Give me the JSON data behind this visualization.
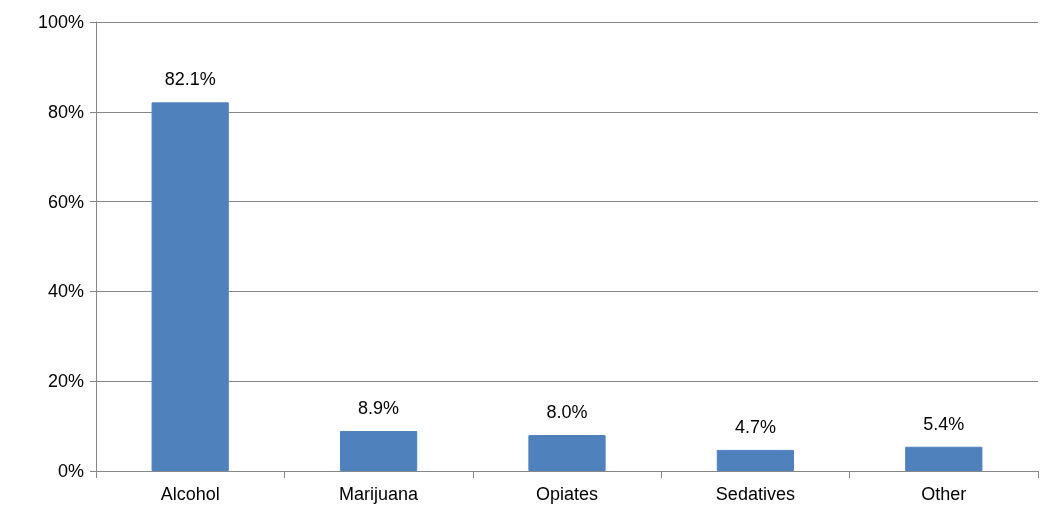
{
  "chart_data": {
    "type": "bar",
    "categories": [
      "Alcohol",
      "Marijuana",
      "Opiates",
      "Sedatives",
      "Other"
    ],
    "values": [
      82.1,
      8.9,
      8.0,
      4.7,
      5.4
    ],
    "value_labels": [
      "82.1%",
      "8.9%",
      "8.0%",
      "4.7%",
      "5.4%"
    ],
    "color": "#4f81bd",
    "ylim": [
      0,
      100
    ],
    "yticks": [
      {
        "value": 0,
        "label": "0%"
      },
      {
        "value": 20,
        "label": "20%"
      },
      {
        "value": 40,
        "label": "40%"
      },
      {
        "value": 60,
        "label": "60%"
      },
      {
        "value": 80,
        "label": "80%"
      },
      {
        "value": 100,
        "label": "100%"
      }
    ],
    "grid": "y"
  }
}
